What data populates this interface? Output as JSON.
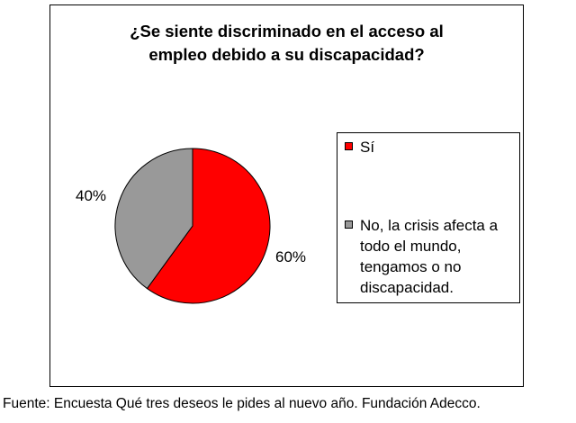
{
  "chart_data": {
    "type": "pie",
    "title": "¿Se siente discriminado en el acceso al\nempleo debido a su discapacidad?",
    "title_lines": [
      "¿Se siente discriminado en el acceso al",
      "empleo debido a su discapacidad?"
    ],
    "categories": [
      "Sí",
      "No, la crisis afecta a todo el mundo, tengamos o no discapacidad."
    ],
    "values": [
      60,
      40
    ],
    "data_labels": [
      "60%",
      "40%"
    ],
    "colors": [
      "#ff0000",
      "#999999"
    ],
    "legend_placement": "right",
    "legend_lines": [
      "Sí",
      "No, la crisis afecta a\ntodo el mundo,\ntengamos o no\ndiscapacidad."
    ]
  },
  "source_text": "Fuente: Encuesta Qué tres deseos le pides al nuevo año. Fundación Adecco."
}
